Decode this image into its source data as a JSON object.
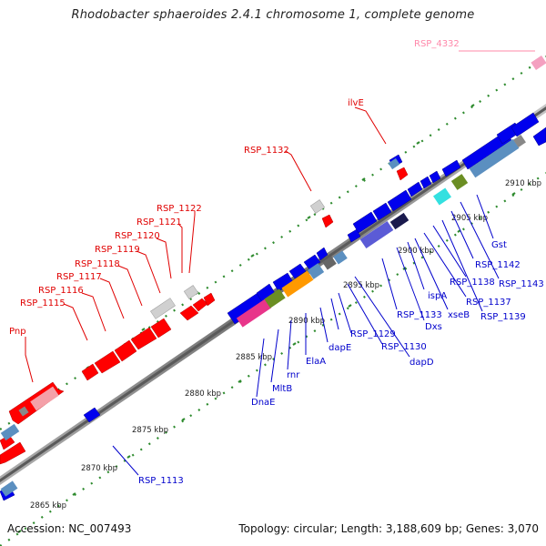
{
  "title": "Rhodobacter sphaeroides 2.4.1 chromosome 1, complete genome",
  "accession_label": "Accession: NC_007493",
  "summary_label": "Topology: circular; Length: 3,188,609 bp; Genes: 3,070",
  "colors": {
    "forward_gene": "#ff0000",
    "reverse_gene": "#0000ee",
    "forward_label": "#e00000",
    "reverse_label": "#0000cc",
    "pseudo_label": "#ff88aa",
    "backbone": "#888888",
    "tick_dots": "#2e8b2e"
  },
  "scale_labels": [
    "2865 kbp",
    "2870 kbp",
    "2875 kbp",
    "2880 kbp",
    "2885 kbp",
    "2890 kbp",
    "2895 kbp",
    "2900 kbp",
    "2905 kbp",
    "2910 kbp"
  ],
  "forward_labels": [
    "Pnp",
    "RSP_1115",
    "RSP_1116",
    "RSP_1117",
    "RSP_1118",
    "RSP_1119",
    "RSP_1120",
    "RSP_1121",
    "RSP_1122",
    "RSP_1132",
    "ilvE"
  ],
  "pseudo_labels": [
    "RSP_4332"
  ],
  "reverse_labels": [
    "RSP_1113",
    "DnaE",
    "MltB",
    "rnr",
    "ElaA",
    "dapE",
    "RSP_1129",
    "RSP_1130",
    "dapD",
    "RSP_1133",
    "Dxs",
    "ispA",
    "xseB",
    "RSP_1137",
    "RSP_1138",
    "RSP_1139",
    "RSP_1142",
    "RSP_1143",
    "Gst"
  ]
}
